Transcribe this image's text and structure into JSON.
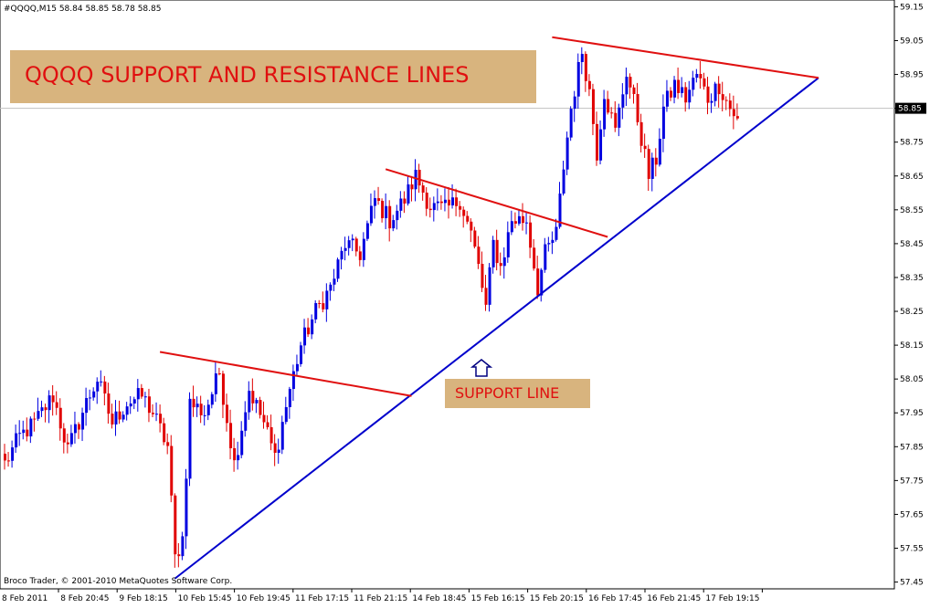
{
  "header": {
    "symbol_info": "#QQQQ,M15  58.84 58.85 58.78 58.85"
  },
  "footer": {
    "copyright": "Broco Trader, © 2001-2010 MetaQuotes Software Corp."
  },
  "annotations": {
    "title_box": "QQQQ SUPPORT AND RESISTANCE LINES",
    "support_label": "SUPPORT LINE",
    "arrow_icon": "up-arrow-icon"
  },
  "colors": {
    "bull": "#0000e0",
    "bear": "#e00000",
    "support_line": "#0000cc",
    "resistance_line": "#e01010",
    "annotation_bg": "#d8b47e",
    "annotation_text": "#e01010",
    "price_marker_bg": "#000000"
  },
  "chart_data": {
    "type": "candlestick",
    "title": "QQQQ SUPPORT AND RESISTANCE LINES",
    "ylim": [
      57.43,
      59.17
    ],
    "y_ticks": [
      "59.15",
      "59.05",
      "58.95",
      "58.85",
      "58.75",
      "58.65",
      "58.55",
      "58.45",
      "58.35",
      "58.25",
      "58.15",
      "58.05",
      "57.95",
      "57.85",
      "57.75",
      "57.65",
      "57.55",
      "57.45"
    ],
    "current_price": "58.85",
    "x_tick_labels": [
      "8 Feb 2011",
      "8 Feb 20:45",
      "9 Feb 18:15",
      "10 Feb 15:45",
      "10 Feb 19:45",
      "11 Feb 17:15",
      "11 Feb 21:15",
      "14 Feb 18:45",
      "15 Feb 16:15",
      "15 Feb 20:15",
      "16 Feb 17:45",
      "16 Feb 21:45",
      "17 Feb 19:15"
    ],
    "anchors": [
      {
        "i": 0,
        "price": 57.8
      },
      {
        "i": 4,
        "price": 57.88
      },
      {
        "i": 8,
        "price": 57.92
      },
      {
        "i": 13,
        "price": 58.0
      },
      {
        "i": 17,
        "price": 57.84
      },
      {
        "i": 22,
        "price": 57.98
      },
      {
        "i": 25,
        "price": 58.05
      },
      {
        "i": 29,
        "price": 57.92
      },
      {
        "i": 33,
        "price": 57.98
      },
      {
        "i": 37,
        "price": 58.0
      },
      {
        "i": 40,
        "price": 57.95
      },
      {
        "i": 44,
        "price": 57.85
      },
      {
        "i": 46,
        "price": 57.52
      },
      {
        "i": 48,
        "price": 57.58
      },
      {
        "i": 50,
        "price": 57.98
      },
      {
        "i": 54,
        "price": 57.95
      },
      {
        "i": 58,
        "price": 58.07
      },
      {
        "i": 62,
        "price": 57.8
      },
      {
        "i": 66,
        "price": 58.02
      },
      {
        "i": 70,
        "price": 57.92
      },
      {
        "i": 73,
        "price": 57.82
      },
      {
        "i": 77,
        "price": 58.02
      },
      {
        "i": 80,
        "price": 58.15
      },
      {
        "i": 84,
        "price": 58.25
      },
      {
        "i": 88,
        "price": 58.32
      },
      {
        "i": 92,
        "price": 58.45
      },
      {
        "i": 96,
        "price": 58.42
      },
      {
        "i": 100,
        "price": 58.58
      },
      {
        "i": 104,
        "price": 58.52
      },
      {
        "i": 108,
        "price": 58.58
      },
      {
        "i": 111,
        "price": 58.65
      },
      {
        "i": 115,
        "price": 58.56
      },
      {
        "i": 119,
        "price": 58.55
      },
      {
        "i": 123,
        "price": 58.58
      },
      {
        "i": 126,
        "price": 58.48
      },
      {
        "i": 128,
        "price": 58.38
      },
      {
        "i": 130,
        "price": 58.26
      },
      {
        "i": 132,
        "price": 58.45
      },
      {
        "i": 134,
        "price": 58.38
      },
      {
        "i": 137,
        "price": 58.52
      },
      {
        "i": 141,
        "price": 58.52
      },
      {
        "i": 144,
        "price": 58.32
      },
      {
        "i": 146,
        "price": 58.42
      },
      {
        "i": 149,
        "price": 58.48
      },
      {
        "i": 151,
        "price": 58.68
      },
      {
        "i": 153,
        "price": 58.85
      },
      {
        "i": 156,
        "price": 59.02
      },
      {
        "i": 158,
        "price": 58.9
      },
      {
        "i": 160,
        "price": 58.72
      },
      {
        "i": 162,
        "price": 58.9
      },
      {
        "i": 165,
        "price": 58.78
      },
      {
        "i": 168,
        "price": 58.96
      },
      {
        "i": 171,
        "price": 58.82
      },
      {
        "i": 174,
        "price": 58.65
      },
      {
        "i": 176,
        "price": 58.7
      },
      {
        "i": 178,
        "price": 58.85
      },
      {
        "i": 181,
        "price": 58.92
      },
      {
        "i": 184,
        "price": 58.88
      },
      {
        "i": 187,
        "price": 58.95
      },
      {
        "i": 190,
        "price": 58.88
      },
      {
        "i": 193,
        "price": 58.92
      },
      {
        "i": 196,
        "price": 58.85
      },
      {
        "i": 198,
        "price": 58.82
      }
    ],
    "trend_lines": [
      {
        "name": "support",
        "from": {
          "i": 46,
          "price": 57.46
        },
        "to": {
          "i": 220,
          "price": 58.94
        }
      },
      {
        "name": "resistance-1",
        "from": {
          "i": 42,
          "price": 58.13
        },
        "to": {
          "i": 110,
          "price": 58.0
        }
      },
      {
        "name": "resistance-2",
        "from": {
          "i": 103,
          "price": 58.67
        },
        "to": {
          "i": 163,
          "price": 58.47
        }
      },
      {
        "name": "resistance-3",
        "from": {
          "i": 148,
          "price": 59.06
        },
        "to": {
          "i": 220,
          "price": 58.94
        }
      }
    ]
  }
}
